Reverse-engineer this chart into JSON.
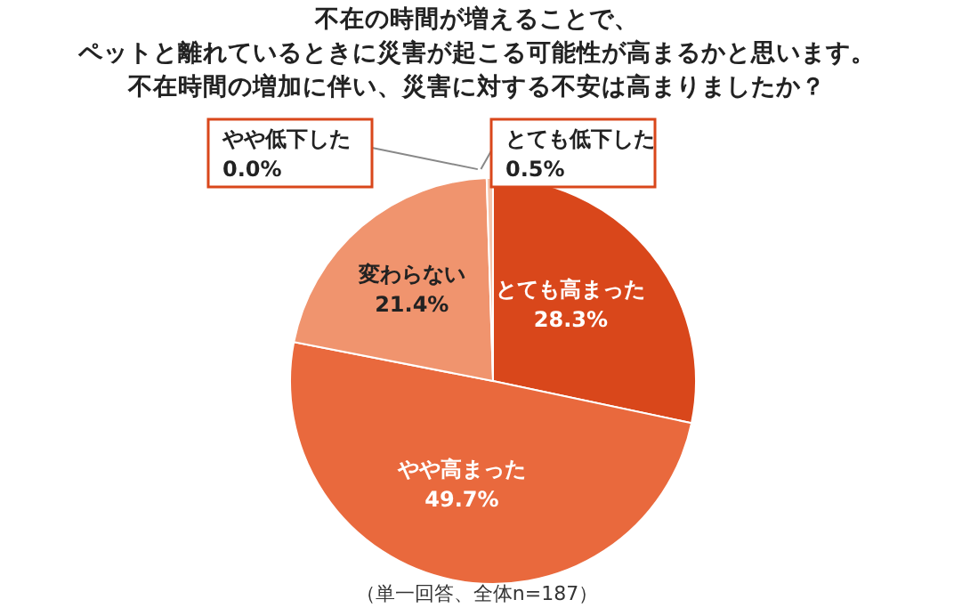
{
  "chart_data": {
    "type": "pie",
    "title": "不在の時間が増えることで、ペットと離れているときに災害が起こる可能性が高まるかと思います。",
    "subtitle": "不在時間の増加に伴い、災害に対する不安は高まりましたか？",
    "categories": [
      "とても高まった",
      "やや高まった",
      "変わらない",
      "やや低下した",
      "とても低下した"
    ],
    "values": [
      28.3,
      49.7,
      21.4,
      0.0,
      0.5
    ],
    "value_labels": [
      "28.3%",
      "49.7%",
      "21.4%",
      "0.0%",
      "0.5%"
    ],
    "colors": [
      "#d9471b",
      "#e9693d",
      "#f0946e",
      "#fbe3d6",
      "#f6c4aa"
    ],
    "annotations": [
      "（単一回答、全体n=187）"
    ]
  }
}
